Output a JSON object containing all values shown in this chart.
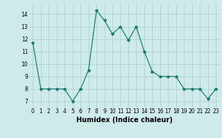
{
  "x": [
    0,
    1,
    2,
    3,
    4,
    5,
    6,
    7,
    8,
    9,
    10,
    11,
    12,
    13,
    14,
    15,
    16,
    17,
    18,
    19,
    20,
    21,
    22,
    23
  ],
  "y": [
    11.7,
    8.0,
    8.0,
    8.0,
    8.0,
    7.0,
    8.0,
    9.5,
    14.3,
    13.5,
    12.4,
    13.0,
    11.9,
    13.0,
    11.0,
    9.4,
    9.0,
    9.0,
    9.0,
    8.0,
    8.0,
    8.0,
    7.2,
    8.0
  ],
  "line_color": "#1a7a6e",
  "marker": "*",
  "marker_size": 3,
  "bg_color": "#ceeaea",
  "grid_color": "#aed0d0",
  "xlabel": "Humidex (Indice chaleur)",
  "xlim": [
    -0.5,
    23.5
  ],
  "ylim": [
    6.5,
    14.8
  ],
  "yticks": [
    7,
    8,
    9,
    10,
    11,
    12,
    13,
    14
  ],
  "xticks": [
    0,
    1,
    2,
    3,
    4,
    5,
    6,
    7,
    8,
    9,
    10,
    11,
    12,
    13,
    14,
    15,
    16,
    17,
    18,
    19,
    20,
    21,
    22,
    23
  ],
  "tick_fontsize": 5.5,
  "xlabel_fontsize": 7
}
